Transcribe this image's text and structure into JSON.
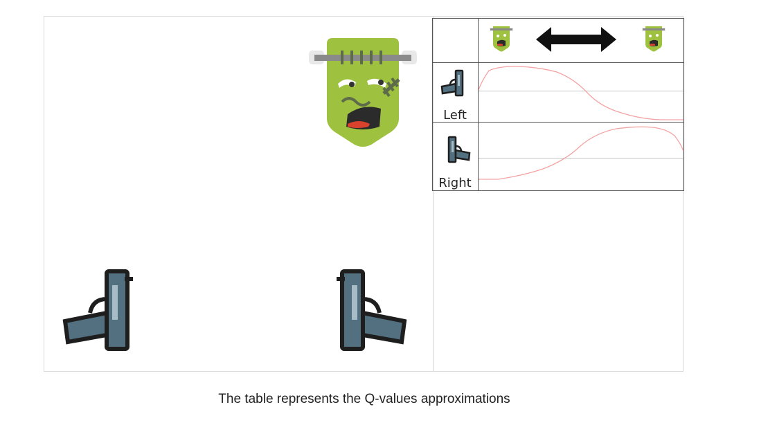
{
  "table": {
    "row_labels": [
      "Left",
      "Right"
    ]
  },
  "caption": "The table represents the Q-values approximations",
  "icons": {
    "monster": "frankenstein-monster-icon",
    "gun_left": "pistol-left-icon",
    "gun_right": "pistol-right-icon",
    "arrow": "double-arrow-icon"
  },
  "colors": {
    "monster_skin": "#9ec13f",
    "gun_body": "#52707f",
    "curve": "#f4a3a3",
    "grid": "#c8c8c8"
  }
}
